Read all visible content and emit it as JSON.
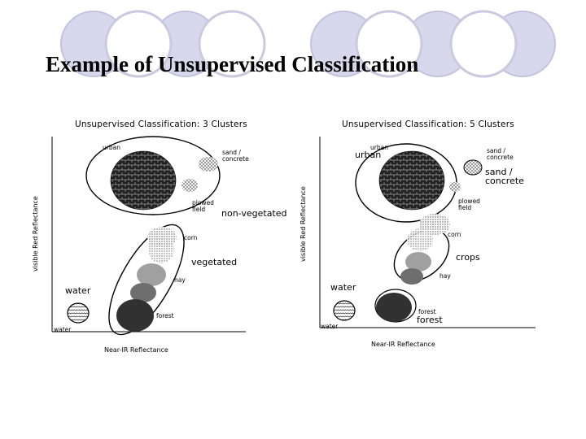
{
  "slide": {
    "title": "Example of Unsupervised Classification",
    "theme_colors": {
      "circle_fill": "#d8d8ec",
      "circle_outline": "#c3c3de"
    }
  },
  "left_panel": {
    "title": "Unsupervised Classification: 3 Clusters",
    "y_axis_label": "visible Red Reflectance",
    "x_axis_label": "Near-IR Reflectance",
    "labels": {
      "urban": "urban",
      "sand": "sand /\nconcrete",
      "plowed": "plowed\nfield",
      "non_vegetated": "non-vegetated",
      "corn": "corn",
      "vegetated": "vegetated",
      "hay": "hay",
      "water_big": "water",
      "forest": "forest",
      "water_small": "water"
    }
  },
  "right_panel": {
    "title": "Unsupervised Classification: 5 Clusters",
    "y_axis_label": "visible Red Reflectance",
    "x_axis_label": "Near-IR Reflectance",
    "labels": {
      "urban_small": "urban",
      "urban_big": "urban",
      "sand_small": "sand /\nconcrete",
      "sand_big": "sand /\nconcrete",
      "plowed": "plowed\nfield",
      "corn": "corn",
      "crops": "crops",
      "hay": "hay",
      "water_big": "water",
      "forest_small": "forest",
      "forest_big": "forest",
      "water_small": "water"
    }
  }
}
